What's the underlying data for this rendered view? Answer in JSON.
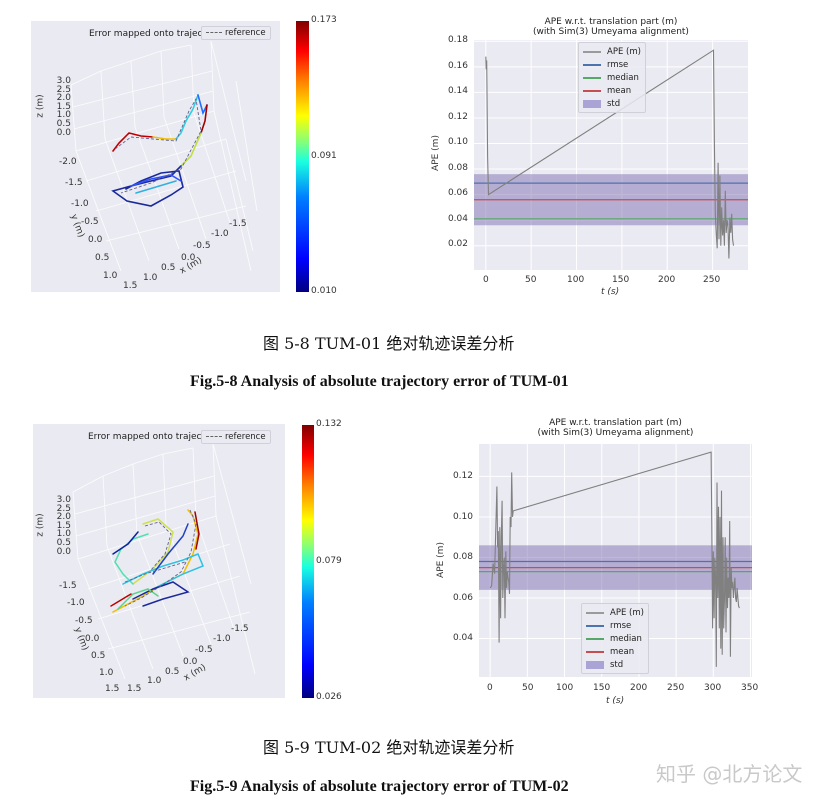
{
  "figures": [
    {
      "id": "fig-5-8",
      "plot3d": {
        "title": "Error mapped onto trajectory",
        "legend_label": "reference",
        "z_label": "z (m)",
        "y_label": "y (m)",
        "x_label": "x (m)",
        "z_ticks": [
          "3.0",
          "2.5",
          "2.0",
          "1.5",
          "1.0",
          "0.5",
          "0.0"
        ],
        "y_ticks": [
          "-2.0",
          "-1.5",
          "-1.0",
          "-0.5",
          "0.0",
          "0.5",
          "1.0"
        ],
        "x_ticks": [
          "1.5",
          "1.0",
          "0.5",
          "0.0",
          "-0.5",
          "-1.0",
          "-1.5"
        ],
        "colorbar": {
          "max": "0.173",
          "mid": "0.091",
          "min": "0.010"
        }
      },
      "ape": {
        "title_line1": "APE w.r.t. translation part (m)",
        "title_line2": "(with Sim(3) Umeyama alignment)",
        "ylabel": "APE (m)",
        "xlabel": "t (s)",
        "yticks": [
          "0.18",
          "0.16",
          "0.14",
          "0.12",
          "0.10",
          "0.08",
          "0.06",
          "0.04",
          "0.02"
        ],
        "xticks": [
          "0",
          "50",
          "100",
          "150",
          "200",
          "250"
        ],
        "legend": [
          "APE (m)",
          "rmse",
          "median",
          "mean",
          "std"
        ]
      },
      "caption_cn": "图 5-8 TUM-01 绝对轨迹误差分析",
      "caption_en": "Fig.5-8 Analysis of absolute trajectory error of TUM-01"
    },
    {
      "id": "fig-5-9",
      "plot3d": {
        "title": "Error mapped onto trajectory",
        "legend_label": "reference",
        "z_label": "z (m)",
        "y_label": "y (m)",
        "x_label": "x (m)",
        "z_ticks": [
          "3.0",
          "2.5",
          "2.0",
          "1.5",
          "1.0",
          "0.5",
          "0.0"
        ],
        "y_ticks": [
          "-1.5",
          "-1.0",
          "-0.5",
          "0.0",
          "0.5",
          "1.0",
          "1.5"
        ],
        "x_ticks": [
          "1.5",
          "1.0",
          "0.5",
          "0.0",
          "-0.5",
          "-1.0",
          "-1.5"
        ],
        "colorbar": {
          "max": "0.132",
          "mid": "0.079",
          "min": "0.026"
        }
      },
      "ape": {
        "title_line1": "APE w.r.t. translation part (m)",
        "title_line2": "(with Sim(3) Umeyama alignment)",
        "ylabel": "APE (m)",
        "xlabel": "t (s)",
        "yticks": [
          "0.12",
          "0.10",
          "0.08",
          "0.06",
          "0.04"
        ],
        "xticks": [
          "0",
          "50",
          "100",
          "150",
          "200",
          "250",
          "300",
          "350"
        ],
        "legend": [
          "APE (m)",
          "rmse",
          "median",
          "mean",
          "std"
        ]
      },
      "caption_cn": "图 5-9 TUM-02 绝对轨迹误差分析",
      "caption_en": "Fig.5-9 Analysis of absolute trajectory error of TUM-02"
    }
  ],
  "watermark": "知乎 @北方论文",
  "colors": {
    "ape": "#808080",
    "rmse": "#4c72b0",
    "median": "#55a868",
    "mean": "#c44e52",
    "std": "#8172b2",
    "plot_bg": "#eaeaf2",
    "grid": "#ffffff"
  },
  "chart_data": [
    {
      "type": "line",
      "title": "APE w.r.t. translation part (m) (with Sim(3) Umeyama alignment)",
      "xlabel": "t (s)",
      "ylabel": "APE (m)",
      "xlim": [
        -13,
        289
      ],
      "ylim": [
        0.001,
        0.181
      ],
      "grid": true,
      "legend_position": "upper center",
      "series": [
        {
          "name": "APE (m)",
          "x": [
            0,
            0.5,
            1,
            2,
            3,
            251,
            252,
            253,
            254,
            255,
            256,
            257,
            258,
            259,
            260,
            261,
            262,
            263,
            264,
            265,
            266,
            267,
            268,
            269,
            270,
            271,
            272,
            273
          ],
          "values": [
            0.168,
            0.158,
            0.165,
            0.09,
            0.06,
            0.173,
            0.1,
            0.045,
            0.03,
            0.018,
            0.085,
            0.025,
            0.075,
            0.02,
            0.05,
            0.028,
            0.04,
            0.02,
            0.063,
            0.03,
            0.04,
            0.035,
            0.01,
            0.042,
            0.03,
            0.045,
            0.025,
            0.02
          ]
        },
        {
          "name": "rmse",
          "constant": 0.069
        },
        {
          "name": "median",
          "constant": 0.041
        },
        {
          "name": "mean",
          "constant": 0.056
        },
        {
          "name": "std",
          "band": [
            0.036,
            0.076
          ]
        }
      ]
    },
    {
      "type": "line",
      "title": "APE w.r.t. translation part (m) (with Sim(3) Umeyama alignment)",
      "xlabel": "t (s)",
      "ylabel": "APE (m)",
      "xlim": [
        -15,
        352
      ],
      "ylim": [
        0.021,
        0.136
      ],
      "grid": true,
      "legend_position": "lower center",
      "series": [
        {
          "name": "APE (m)",
          "x": [
            0,
            2,
            4,
            6,
            8,
            9,
            10,
            11,
            12,
            13,
            14,
            15,
            16,
            17,
            18,
            19,
            20,
            21,
            22,
            23,
            24,
            25,
            26,
            27,
            28,
            29,
            30,
            31,
            297,
            298,
            299,
            300,
            301,
            302,
            303,
            304,
            305,
            306,
            307,
            308,
            309,
            310,
            311,
            312,
            313,
            314,
            315,
            316,
            317,
            318,
            319,
            320,
            321,
            322,
            323,
            324,
            325,
            326,
            327,
            328,
            329,
            330,
            331,
            332,
            333,
            334,
            335
          ],
          "values": [
            0.065,
            0.066,
            0.077,
            0.072,
            0.1,
            0.115,
            0.085,
            0.093,
            0.038,
            0.095,
            0.05,
            0.09,
            0.108,
            0.06,
            0.075,
            0.08,
            0.05,
            0.083,
            0.065,
            0.073,
            0.07,
            0.068,
            0.062,
            0.1,
            0.095,
            0.122,
            0.1,
            0.103,
            0.132,
            0.095,
            0.045,
            0.083,
            0.05,
            0.08,
            0.07,
            0.026,
            0.117,
            0.06,
            0.105,
            0.045,
            0.1,
            0.035,
            0.113,
            0.032,
            0.09,
            0.045,
            0.06,
            0.09,
            0.043,
            0.08,
            0.055,
            0.07,
            0.06,
            0.098,
            0.031,
            0.075,
            0.065,
            0.068,
            0.06,
            0.065,
            0.07,
            0.06,
            0.058,
            0.065,
            0.06,
            0.056,
            0.055
          ]
        },
        {
          "name": "rmse",
          "constant": 0.078
        },
        {
          "name": "median",
          "constant": 0.073
        },
        {
          "name": "mean",
          "constant": 0.075
        },
        {
          "name": "std",
          "band": [
            0.064,
            0.086
          ]
        }
      ]
    },
    {
      "type": "scatter",
      "title": "Error mapped onto trajectory (TUM-01)",
      "xlabel": "x (m)",
      "ylabel": "y (m)",
      "zlabel": "z (m)",
      "colorbar_range": [
        0.01,
        0.173
      ],
      "colorbar_ticks": [
        0.01,
        0.091,
        0.173
      ]
    },
    {
      "type": "scatter",
      "title": "Error mapped onto trajectory (TUM-02)",
      "xlabel": "x (m)",
      "ylabel": "y (m)",
      "zlabel": "z (m)",
      "colorbar_range": [
        0.026,
        0.132
      ],
      "colorbar_ticks": [
        0.026,
        0.079,
        0.132
      ]
    }
  ]
}
